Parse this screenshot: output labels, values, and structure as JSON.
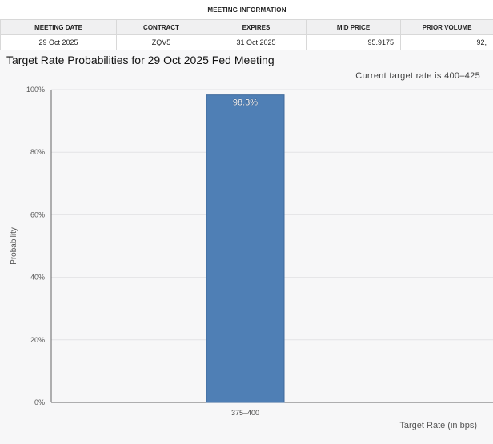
{
  "meeting_info": {
    "caption": "MEETING INFORMATION",
    "columns": [
      "MEETING DATE",
      "CONTRACT",
      "EXPIRES",
      "MID PRICE",
      "PRIOR VOLUME"
    ],
    "row": [
      "29 Oct 2025",
      "ZQV5",
      "31 Oct 2025",
      "95.9175",
      "92,"
    ]
  },
  "chart_data": {
    "type": "bar",
    "title": "Target Rate Probabilities for 29 Oct 2025 Fed Meeting",
    "subtitle": "Current target rate is 400–425",
    "xlabel": "Target Rate (in bps)",
    "ylabel": "Probability",
    "categories": [
      "375–400"
    ],
    "values": [
      98.3
    ],
    "data_labels": [
      "98.3%"
    ],
    "ylim": [
      0,
      100
    ],
    "yticks": [
      "0%",
      "20%",
      "40%",
      "60%",
      "80%",
      "100%"
    ],
    "grid": true,
    "colors": {
      "bar": "#4f7fb5",
      "bar_border": "#3f6a9c",
      "grid": "#e3e3e6",
      "axis": "#666666"
    }
  }
}
